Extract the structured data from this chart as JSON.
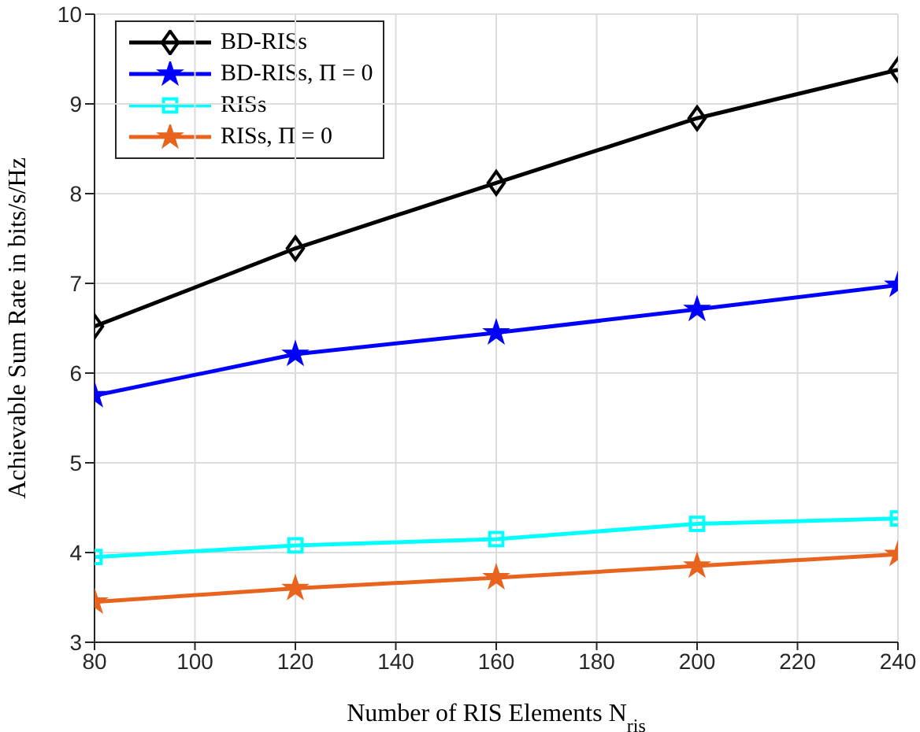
{
  "chart_data": {
    "type": "line",
    "xlabel": "Number of RIS Elements N$_{ris}$",
    "ylabel": "Achievable Sum Rate in bits/s/Hz",
    "x": [
      80,
      120,
      160,
      200,
      240
    ],
    "series": [
      {
        "name": "BD-RISs",
        "color": "#000000",
        "marker": "diamond",
        "values": [
          6.52,
          7.39,
          8.12,
          8.84,
          9.38
        ]
      },
      {
        "name": "BD-RISs, Π = 0",
        "color": "#0000ff",
        "marker": "star",
        "values": [
          5.75,
          6.21,
          6.45,
          6.71,
          6.98
        ]
      },
      {
        "name": "RISs",
        "color": "#00ffff",
        "marker": "square",
        "values": [
          3.95,
          4.08,
          4.15,
          4.32,
          4.38
        ]
      },
      {
        "name": "RISs, Π = 0",
        "color": "#e8641e",
        "marker": "star",
        "values": [
          3.45,
          3.6,
          3.72,
          3.85,
          3.98
        ]
      }
    ],
    "xlim": [
      80,
      240
    ],
    "xticks": [
      80,
      100,
      120,
      140,
      160,
      180,
      200,
      220,
      240
    ],
    "ylim": [
      3,
      10
    ],
    "yticks": [
      3,
      4,
      5,
      6,
      7,
      8,
      9,
      10
    ],
    "grid": true,
    "legend": "top left",
    "line_style": "solid"
  }
}
